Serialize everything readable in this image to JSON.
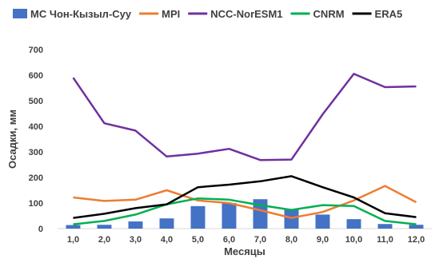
{
  "chart_data": {
    "type": "bar",
    "xlabel": "Месяцы",
    "ylabel": "Осадки, мм",
    "ylim": [
      0,
      700
    ],
    "yticks": [
      "0",
      "100",
      "200",
      "300",
      "400",
      "500",
      "600",
      "700"
    ],
    "categories": [
      "1,0",
      "2,0",
      "3,0",
      "4,0",
      "5,0",
      "6,0",
      "7,0",
      "8,0",
      "9,0",
      "10,0",
      "11,0",
      "12,0"
    ],
    "grid": false,
    "legend_position": "top",
    "bar_series": {
      "name": "МС Чон-Кызыл-Суу",
      "color": "#4472C4",
      "values": [
        14,
        15,
        28,
        40,
        88,
        100,
        115,
        75,
        55,
        37,
        18,
        15
      ]
    },
    "line_series": [
      {
        "name": "MPI",
        "color": "#ED7D31",
        "values": [
          122,
          108,
          113,
          150,
          110,
          100,
          72,
          42,
          65,
          110,
          167,
          103
        ]
      },
      {
        "name": "NCC-NorESM1",
        "color": "#7030A0",
        "values": [
          590,
          412,
          383,
          282,
          293,
          312,
          268,
          270,
          447,
          605,
          553,
          556
        ]
      },
      {
        "name": "CNRM",
        "color": "#00B050",
        "values": [
          17,
          30,
          55,
          95,
          118,
          113,
          92,
          73,
          92,
          88,
          30,
          17
        ]
      },
      {
        "name": "ERA5",
        "color": "#000000",
        "values": [
          42,
          58,
          80,
          95,
          162,
          172,
          185,
          205,
          162,
          122,
          60,
          45
        ]
      }
    ]
  }
}
